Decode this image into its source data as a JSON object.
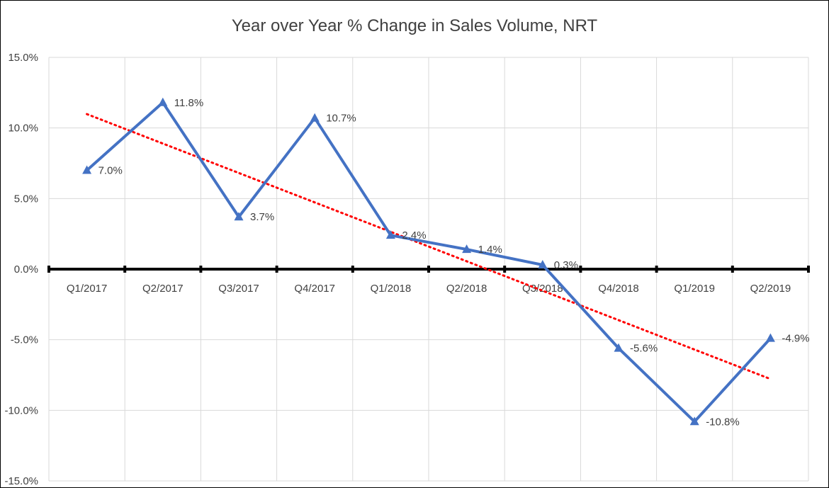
{
  "chart_data": {
    "type": "line",
    "title": "Year over Year % Change in Sales Volume, NRT",
    "categories": [
      "Q1/2017",
      "Q2/2017",
      "Q3/2017",
      "Q4/2017",
      "Q1/2018",
      "Q2/2018",
      "Q3/2018",
      "Q4/2018",
      "Q1/2019",
      "Q2/2019"
    ],
    "series": [
      {
        "values": [
          7.0,
          11.8,
          3.7,
          10.7,
          2.4,
          1.4,
          0.3,
          -5.6,
          -10.8,
          -4.9
        ],
        "labels": [
          "7.0%",
          "11.8%",
          "3.7%",
          "10.7%",
          "2.4%",
          "1.4%",
          "0.3%",
          "-5.6%",
          "-10.8%",
          "-4.9%"
        ],
        "color": "#4472C4",
        "marker": "triangle"
      }
    ],
    "trendline": {
      "type": "linear",
      "style": "dotted",
      "color": "#FF0000"
    },
    "ylim": [
      -15,
      15
    ],
    "yticks": [
      "15.0%",
      "10.0%",
      "5.0%",
      "0.0%",
      "-5.0%",
      "-10.0%",
      "-15.0%"
    ],
    "grid": true,
    "legend": "none"
  }
}
